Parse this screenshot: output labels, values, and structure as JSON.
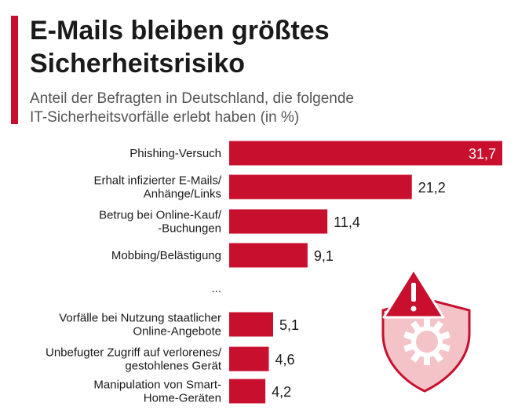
{
  "header": {
    "title_lines": [
      "E-Mails bleiben größtes",
      "Sicherheitsrisiko"
    ],
    "subtitle_lines": [
      "Anteil der Befragten in Deutschland, die folgende",
      "IT-Sicherheitsvorfälle erlebt haben (in %)"
    ]
  },
  "colors": {
    "accent": "#c8102e",
    "bar": "#c8102e",
    "illustration_fill": "#f3c3c8",
    "value_text_inside": "#ffffff",
    "value_text_outside": "#1a1a1a"
  },
  "icons": [
    "warning-triangle-icon",
    "shield-gear-icon"
  ],
  "chart_data": {
    "type": "bar",
    "orientation": "horizontal",
    "title": "E-Mails bleiben größtes Sicherheitsrisiko",
    "subtitle": "Anteil der Befragten in Deutschland, die folgende IT-Sicherheitsvorfälle erlebt haben (in %)",
    "categories": [
      "Phishing-Versuch",
      "Erhalt infizierter E-Mails/ Anhänge/Links",
      "Betrug bei Online-Kauf/ -Buchungen",
      "Mobbing/Belästigung",
      "Vorfälle bei Nutzung staatlicher Online-Angebote",
      "Unbefugter Zugriff auf verlorenes/ gestohlenes Gerät",
      "Manipulation von Smart- Home-Geräten"
    ],
    "category_lines": [
      [
        "Phishing-Versuch"
      ],
      [
        "Erhalt infizierter E-Mails/",
        "Anhänge/Links"
      ],
      [
        "Betrug bei Online-Kauf/",
        "-Buchungen"
      ],
      [
        "Mobbing/Belästigung"
      ],
      [
        "Vorfälle bei Nutzung staatlicher",
        "Online-Angebote"
      ],
      [
        "Unbefugter Zugriff auf verlorenes/",
        "gestohlenes Gerät"
      ],
      [
        "Manipulation von Smart-",
        "Home-Geräten"
      ]
    ],
    "values": [
      31.7,
      21.2,
      11.4,
      9.1,
      5.1,
      4.6,
      4.2
    ],
    "value_labels": [
      "31,7",
      "21,2",
      "11,4",
      "9,1",
      "5,1",
      "4,6",
      "4,2"
    ],
    "gap_label": "...",
    "gap_after_index": 3,
    "xlim": [
      0,
      31.7
    ],
    "grid": false,
    "legend": "none"
  }
}
